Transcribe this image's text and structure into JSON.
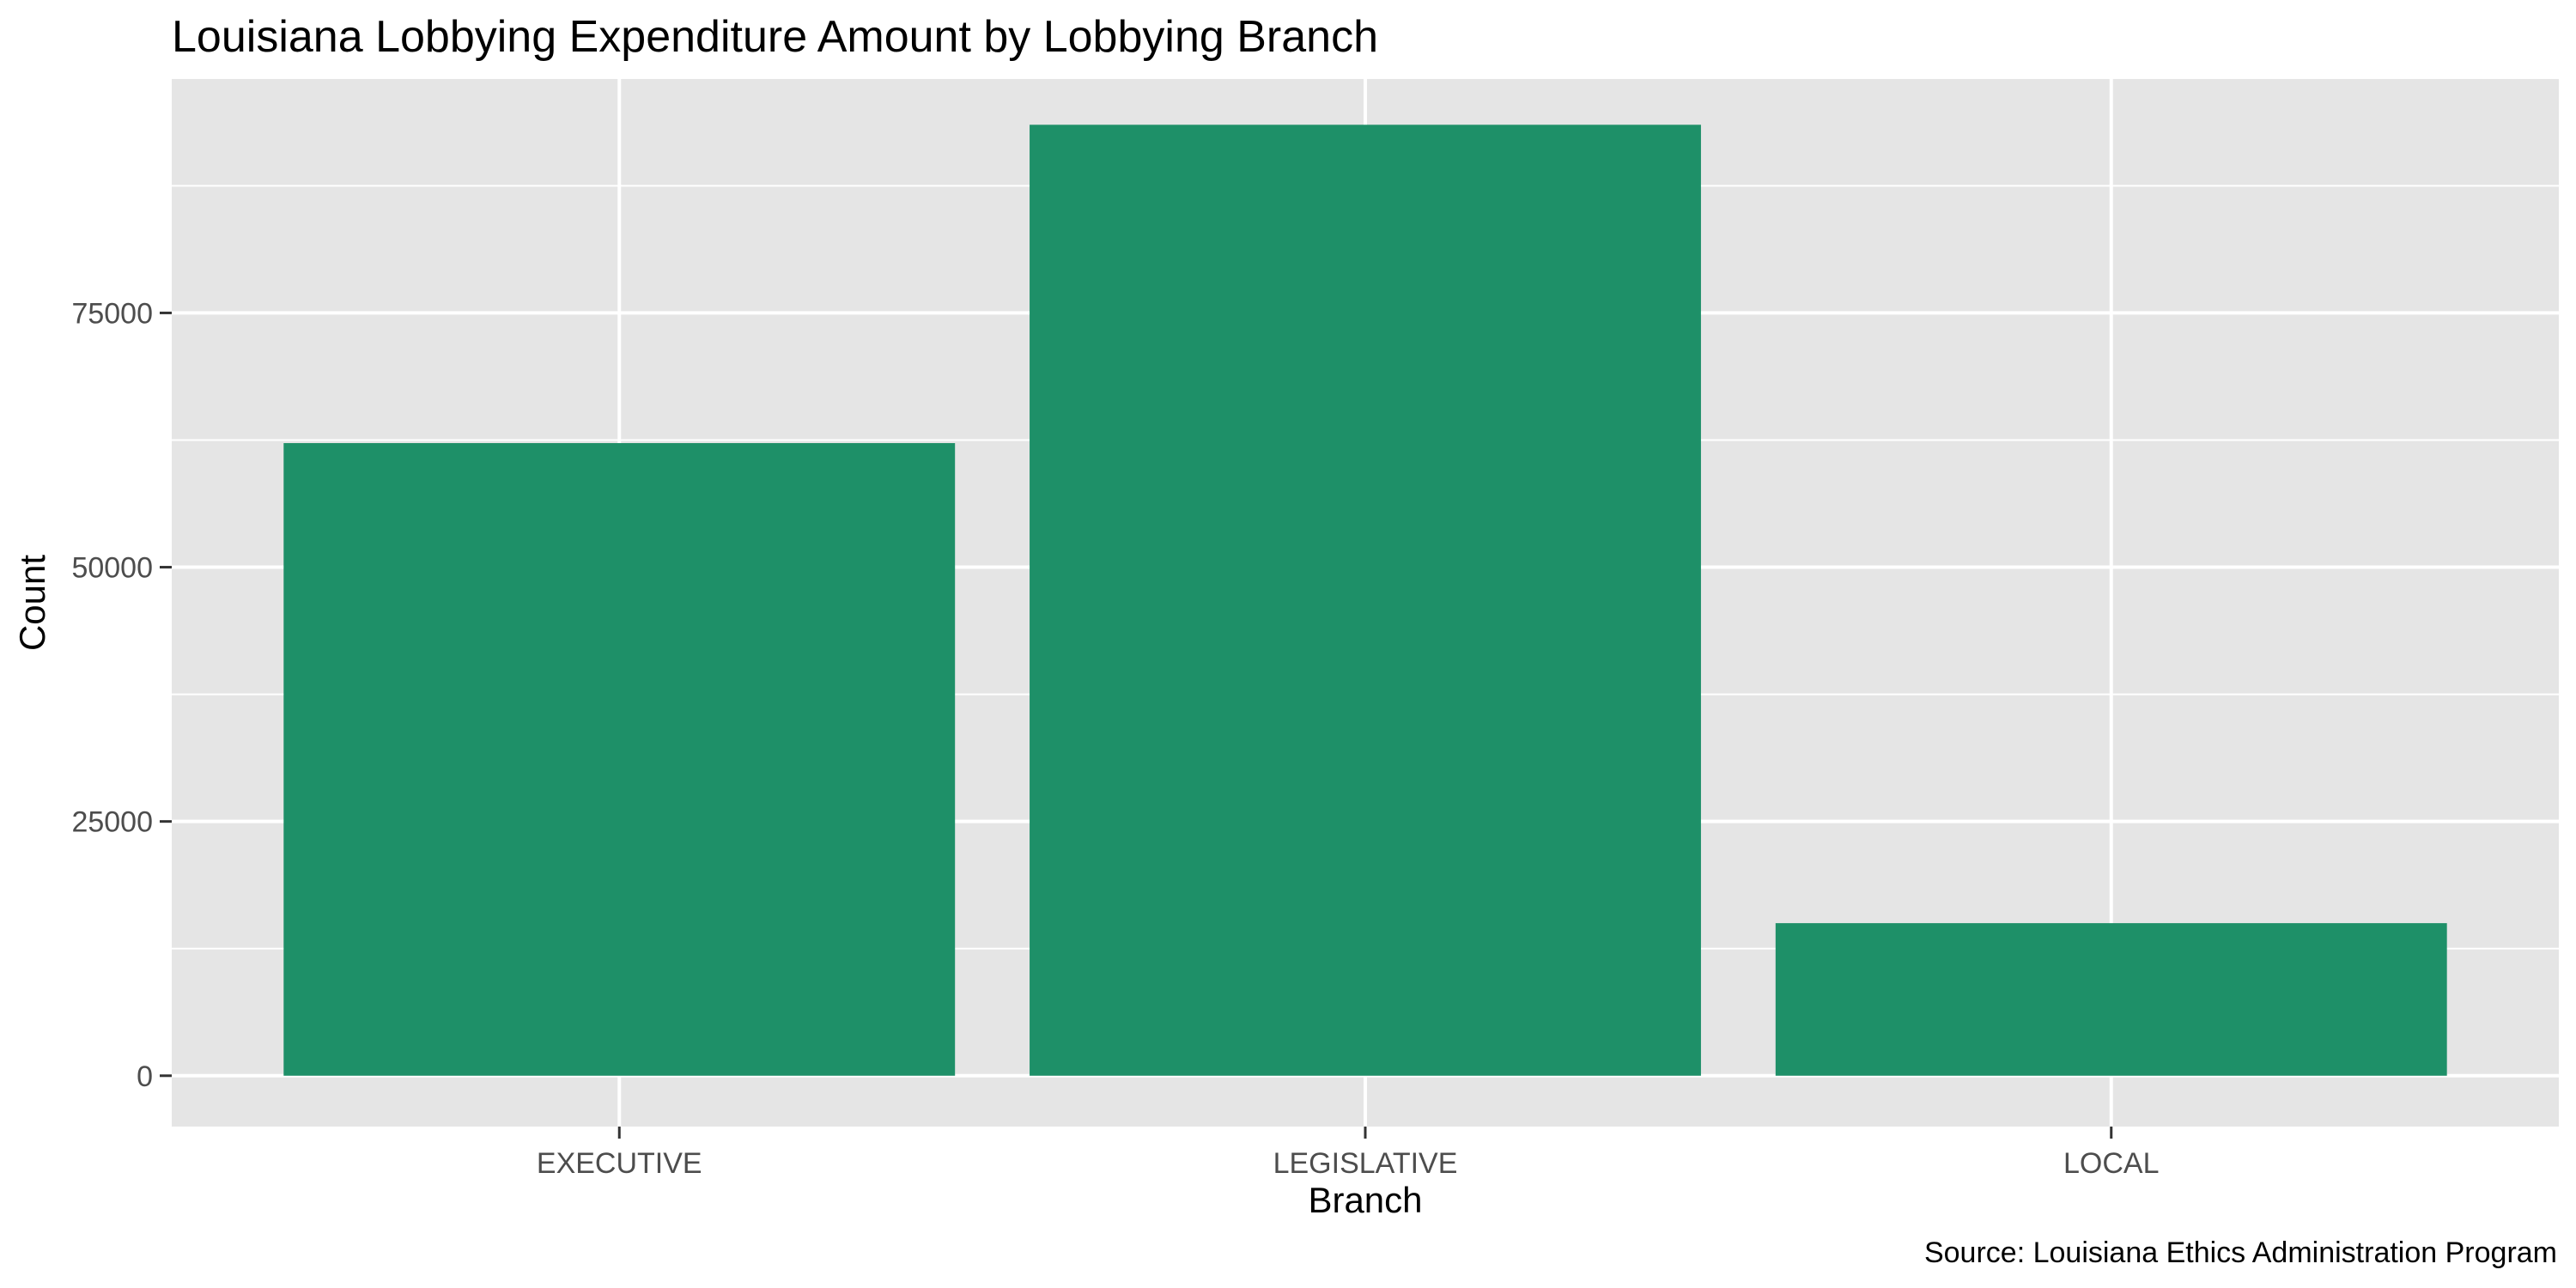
{
  "chart_data": {
    "type": "bar",
    "title": "Louisiana Lobbying Expenditure Amount by Lobbying Branch",
    "xlabel": "Branch",
    "ylabel": "Count",
    "caption": "Source: Louisiana Ethics Administration Program",
    "categories": [
      "EXECUTIVE",
      "LEGISLATIVE",
      "LOCAL"
    ],
    "values": [
      62200,
      93500,
      15000
    ],
    "ylim": [
      -5000,
      98000
    ],
    "yticks": [
      0,
      25000,
      50000,
      75000
    ],
    "ytick_labels": [
      "0",
      "25000",
      "50000",
      "75000"
    ],
    "grid": true,
    "colors": {
      "bar": "#1e9068",
      "panel": "#e5e5e5",
      "grid": "#ffffff"
    }
  }
}
